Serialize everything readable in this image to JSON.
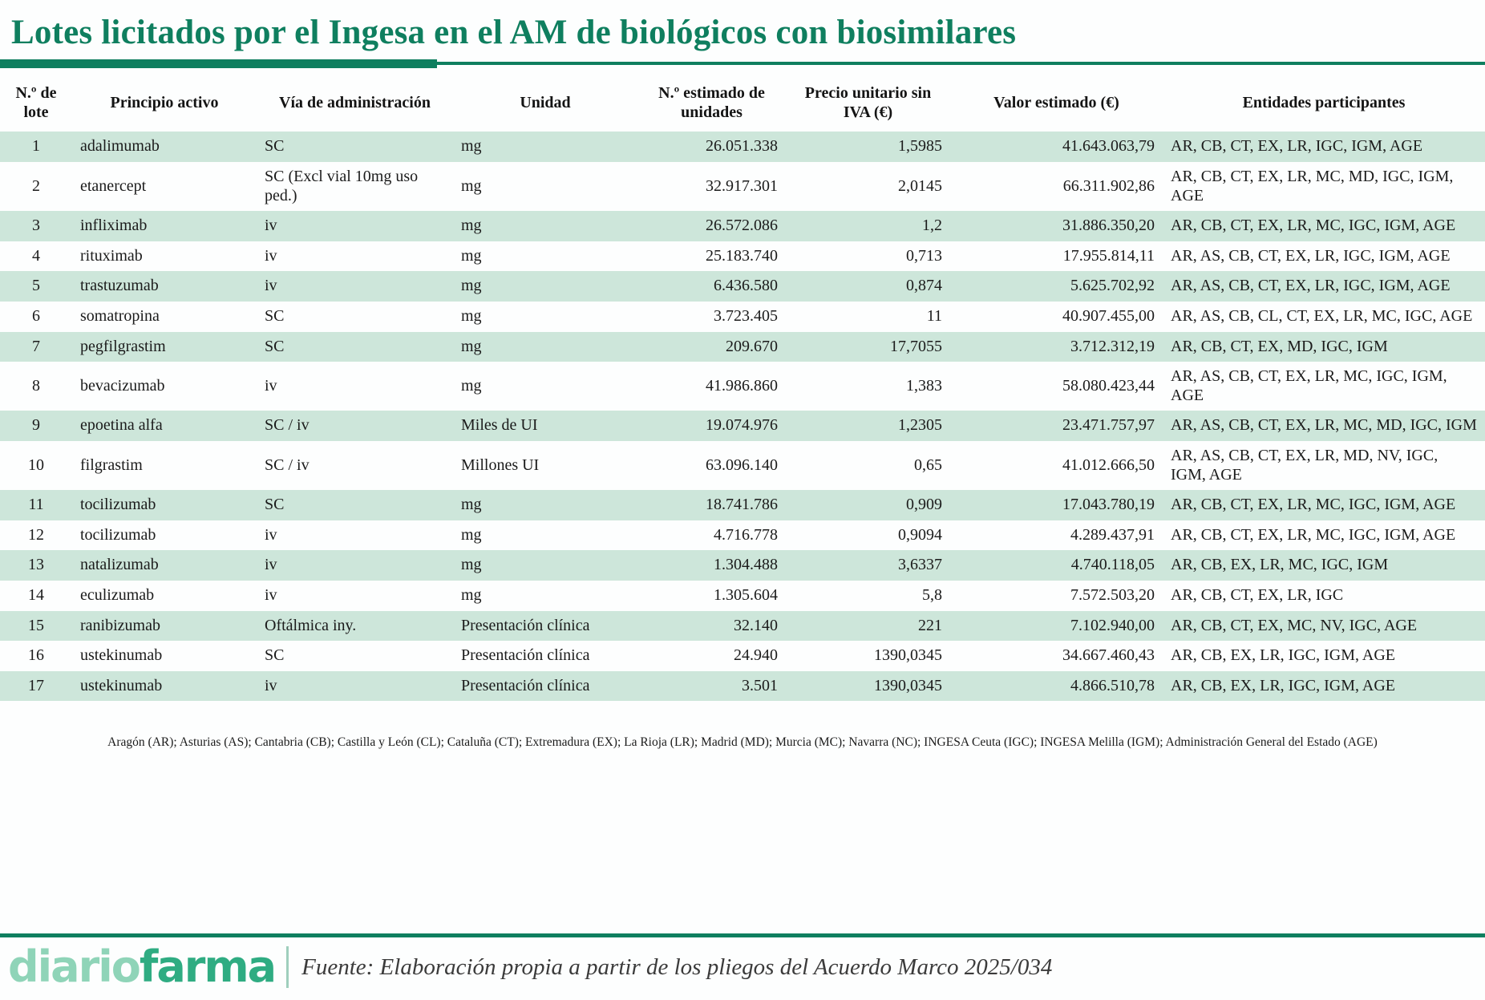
{
  "title": "Lotes licitados por el Ingesa en el AM de biológicos con biosimilares",
  "colors": {
    "accent_green": "#0f7f5f",
    "row_green": "#cde6da",
    "logo_light_green": "#8fd4b8",
    "logo_dark_green": "#2fac82",
    "text_dark": "#1b1b1b"
  },
  "chart_data": {
    "type": "table",
    "title": "Lotes licitados por el Ingesa en el AM de biológicos con biosimilares",
    "columns": [
      "N.º de lote",
      "Principio activo",
      "Vía de administración",
      "Unidad",
      "N.º estimado de unidades",
      "Precio unitario sin IVA (€)",
      "Valor estimado (€)",
      "Entidades participantes"
    ],
    "rows": [
      [
        "1",
        "adalimumab",
        "SC",
        "mg",
        "26.051.338",
        "1,5985",
        "41.643.063,79",
        "AR, CB, CT, EX, LR, IGC, IGM, AGE"
      ],
      [
        "2",
        "etanercept",
        "SC (Excl vial 10mg uso ped.)",
        "mg",
        "32.917.301",
        "2,0145",
        "66.311.902,86",
        "AR, CB, CT, EX, LR, MC, MD, IGC, IGM, AGE"
      ],
      [
        "3",
        "infliximab",
        "iv",
        "mg",
        "26.572.086",
        "1,2",
        "31.886.350,20",
        "AR, CB, CT, EX, LR, MC, IGC, IGM, AGE"
      ],
      [
        "4",
        "rituximab",
        "iv",
        "mg",
        "25.183.740",
        "0,713",
        "17.955.814,11",
        "AR, AS, CB, CT, EX, LR, IGC, IGM, AGE"
      ],
      [
        "5",
        "trastuzumab",
        "iv",
        "mg",
        "6.436.580",
        "0,874",
        "5.625.702,92",
        "AR, AS, CB, CT, EX, LR, IGC, IGM, AGE"
      ],
      [
        "6",
        "somatropina",
        "SC",
        "mg",
        "3.723.405",
        "11",
        "40.907.455,00",
        "AR, AS, CB, CL, CT, EX, LR, MC, IGC, AGE"
      ],
      [
        "7",
        "pegfilgrastim",
        "SC",
        "mg",
        "209.670",
        "17,7055",
        "3.712.312,19",
        "AR, CB, CT, EX, MD, IGC, IGM"
      ],
      [
        "8",
        "bevacizumab",
        "iv",
        "mg",
        "41.986.860",
        "1,383",
        "58.080.423,44",
        "AR, AS, CB, CT, EX, LR, MC, IGC, IGM, AGE"
      ],
      [
        "9",
        "epoetina alfa",
        "SC / iv",
        "Miles de UI",
        "19.074.976",
        "1,2305",
        "23.471.757,97",
        "AR, AS, CB, CT, EX, LR, MC, MD, IGC, IGM"
      ],
      [
        "10",
        "filgrastim",
        "SC / iv",
        "Millones UI",
        "63.096.140",
        "0,65",
        "41.012.666,50",
        "AR, AS, CB, CT, EX, LR, MD, NV, IGC, IGM, AGE"
      ],
      [
        "11",
        "tocilizumab",
        "SC",
        "mg",
        "18.741.786",
        "0,909",
        "17.043.780,19",
        "AR, CB, CT, EX, LR, MC, IGC, IGM, AGE"
      ],
      [
        "12",
        "tocilizumab",
        "iv",
        "mg",
        "4.716.778",
        "0,9094",
        "4.289.437,91",
        "AR, CB, CT, EX, LR, MC, IGC, IGM, AGE"
      ],
      [
        "13",
        "natalizumab",
        "iv",
        "mg",
        "1.304.488",
        "3,6337",
        "4.740.118,05",
        "AR, CB, EX, LR, MC, IGC, IGM"
      ],
      [
        "14",
        "eculizumab",
        "iv",
        "mg",
        "1.305.604",
        "5,8",
        "7.572.503,20",
        "AR, CB, CT, EX, LR, IGC"
      ],
      [
        "15",
        "ranibizumab",
        "Oftálmica iny.",
        "Presentación clínica",
        "32.140",
        "221",
        "7.102.940,00",
        "AR, CB, CT, EX, MC, NV, IGC, AGE"
      ],
      [
        "16",
        "ustekinumab",
        "SC",
        "Presentación clínica",
        "24.940",
        "1390,0345",
        "34.667.460,43",
        "AR, CB, EX, LR, IGC, IGM, AGE"
      ],
      [
        "17",
        "ustekinumab",
        "iv",
        "Presentación clínica",
        "3.501",
        "1390,0345",
        "4.866.510,78",
        "AR, CB, EX, LR, IGC, IGM, AGE"
      ]
    ],
    "footnote": "Aragón (AR); Asturias (AS); Cantabria (CB); Castilla y León (CL); Cataluña (CT); Extremadura (EX); La Rioja (LR); Madrid (MD); Murcia (MC); Navarra (NC); INGESA Ceuta (IGC); INGESA Melilla (IGM); Administración General del Estado (AGE)",
    "layout_hints": {
      "striped": true,
      "stripe_start": "first-row",
      "grid": false
    }
  },
  "footer": {
    "logo_diario": "diario",
    "logo_farma": "farma",
    "source": "Fuente: Elaboración propia a partir de los pliegos del Acuerdo Marco 2025/034"
  }
}
